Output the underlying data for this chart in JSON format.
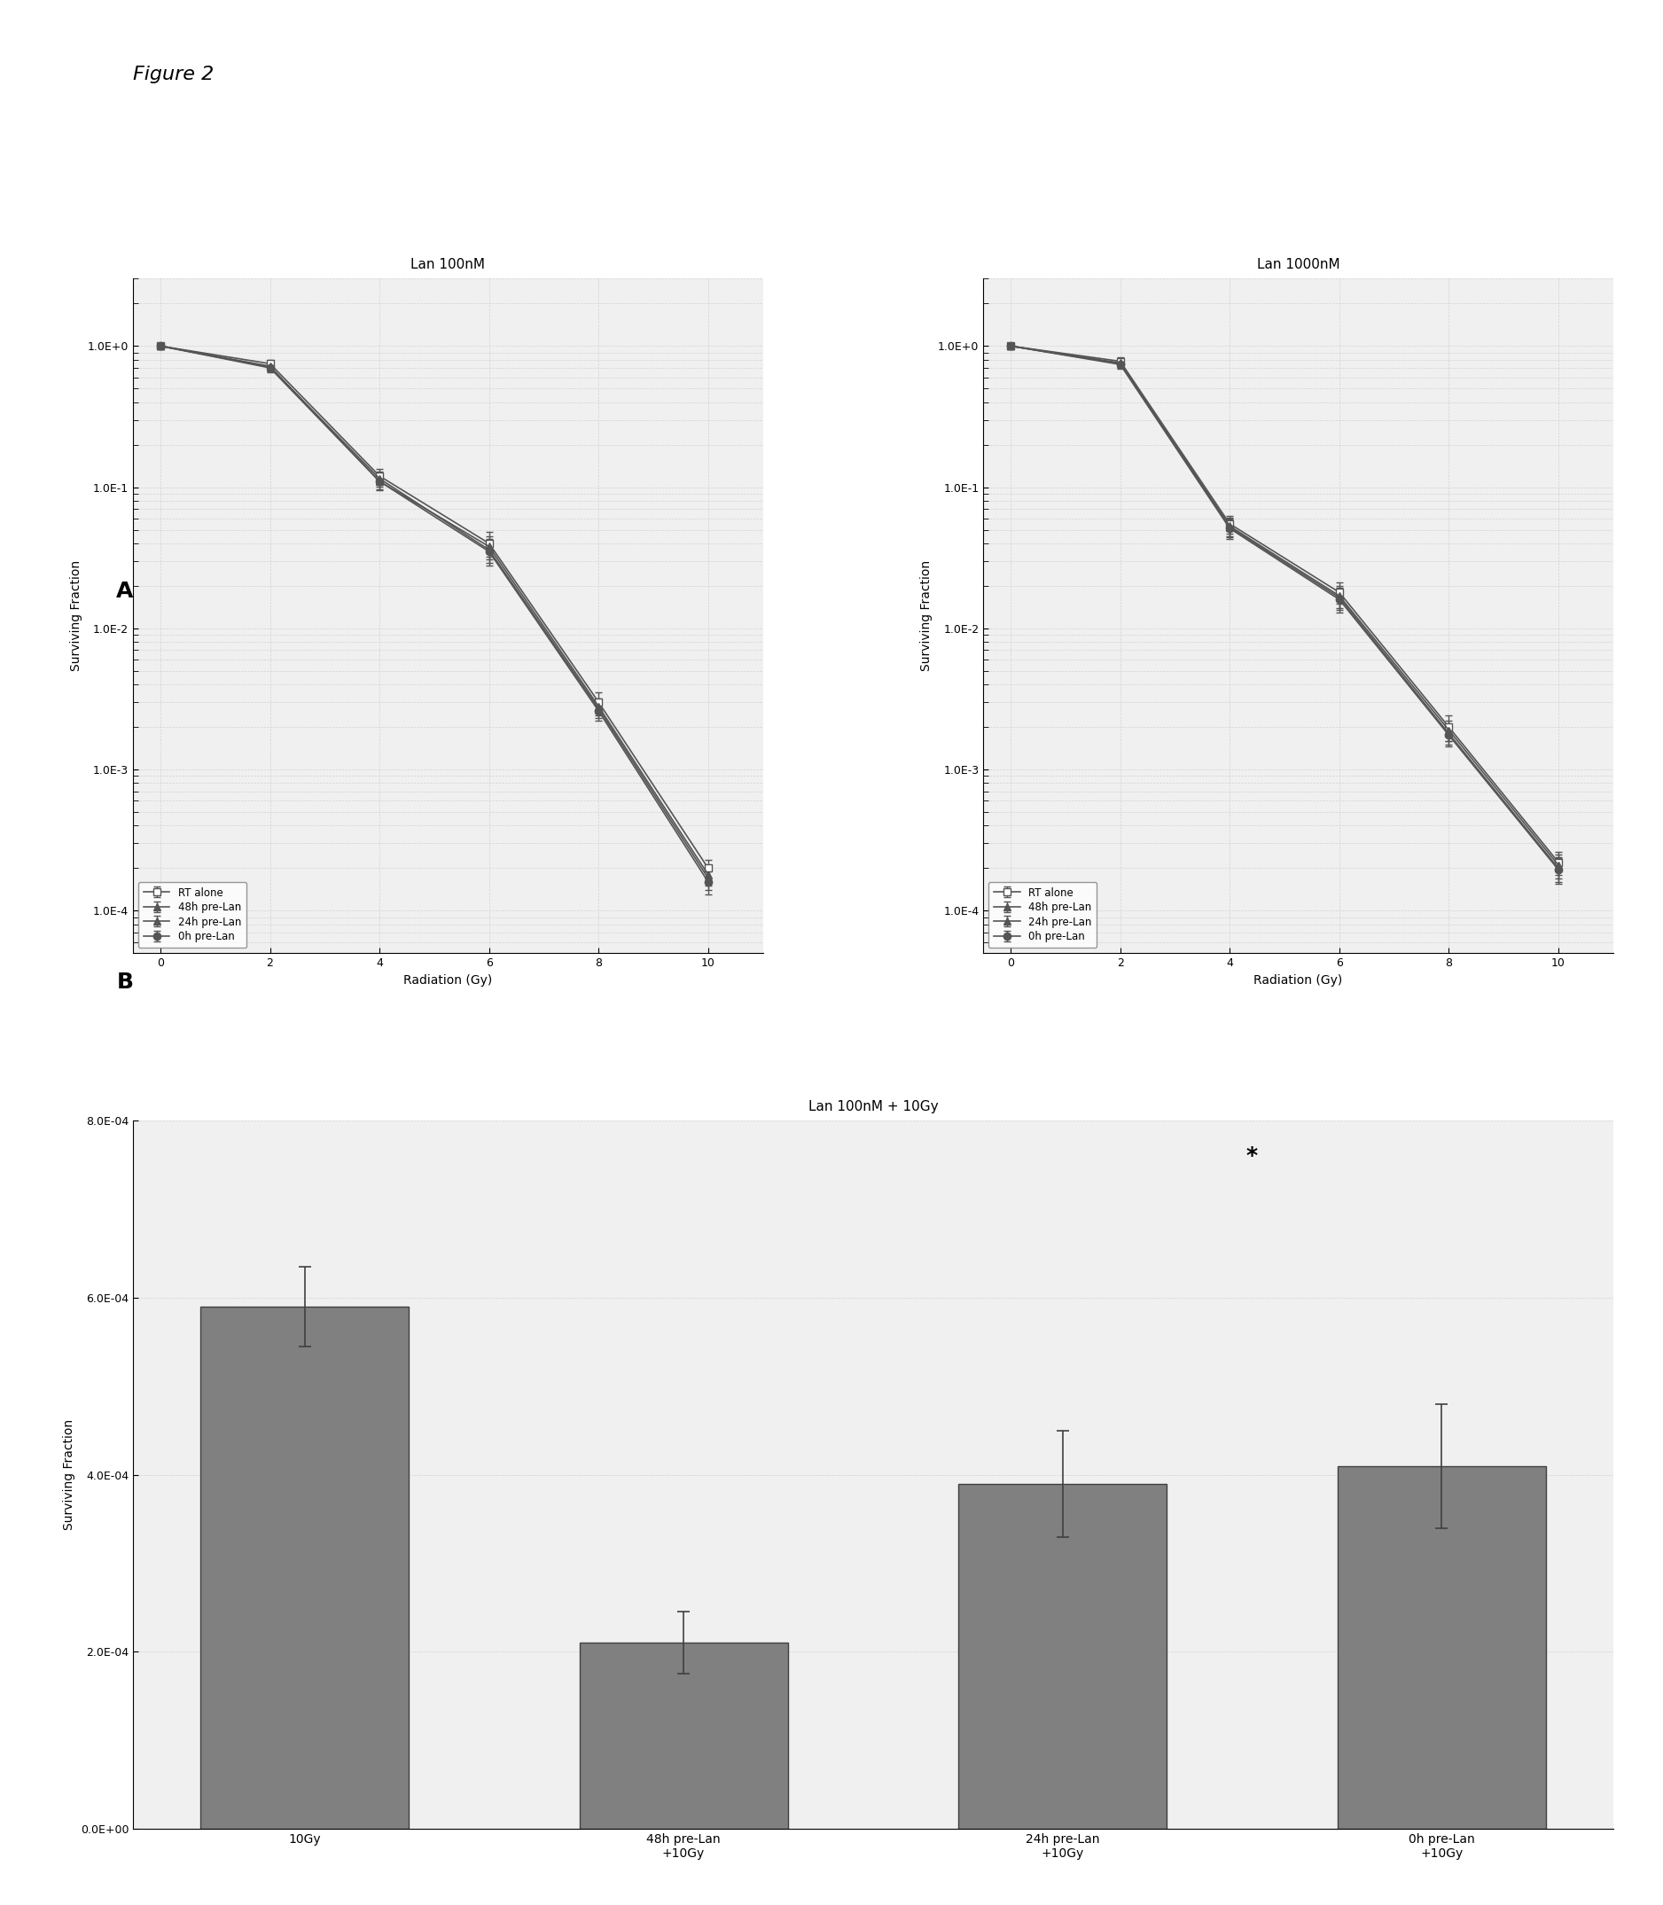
{
  "figure_label": "Figure 2",
  "panel_A_label": "A",
  "panel_B_label": "B",
  "plot_left_title": "Lan 100nM",
  "plot_right_title": "Lan 1000nM",
  "plot_bottom_title": "Lan 100nM + 10Gy",
  "x_radiation": [
    0,
    2,
    4,
    6,
    8,
    10
  ],
  "xlabel": "Radiation (Gy)",
  "ylabel_line": "Surviving Fraction",
  "ylabel_bar": "Surviving Fraction",
  "legend_labels": [
    "RT alone",
    "48h pre-Lan",
    "24h pre-Lan",
    "0h pre-Lan"
  ],
  "line_colors": [
    "#555555",
    "#555555",
    "#555555",
    "#555555"
  ],
  "line_markers": [
    "s",
    "^",
    "^",
    "o"
  ],
  "marker_fills": [
    "white",
    "#555555",
    "#555555",
    "#555555"
  ],
  "line_styles": [
    "-",
    "-",
    "-",
    "-"
  ],
  "y_left_RT": [
    1.0,
    0.75,
    0.12,
    0.04,
    0.003,
    0.0002
  ],
  "y_left_48h": [
    1.0,
    0.72,
    0.11,
    0.038,
    0.0028,
    0.00018
  ],
  "y_left_24h": [
    1.0,
    0.71,
    0.115,
    0.036,
    0.0027,
    0.00017
  ],
  "y_left_0h": [
    1.0,
    0.7,
    0.11,
    0.035,
    0.0026,
    0.00016
  ],
  "y_left_RT_err": [
    0.05,
    0.05,
    0.015,
    0.008,
    0.0005,
    3e-05
  ],
  "y_left_48h_err": [
    0.04,
    0.05,
    0.015,
    0.007,
    0.0004,
    3e-05
  ],
  "y_left_24h_err": [
    0.04,
    0.05,
    0.014,
    0.007,
    0.0004,
    3e-05
  ],
  "y_left_0h_err": [
    0.04,
    0.05,
    0.014,
    0.007,
    0.0004,
    3e-05
  ],
  "y_right_RT": [
    1.0,
    0.78,
    0.055,
    0.018,
    0.002,
    0.00022
  ],
  "y_right_48h": [
    1.0,
    0.76,
    0.053,
    0.017,
    0.0019,
    0.00021
  ],
  "y_right_24h": [
    1.0,
    0.75,
    0.052,
    0.0165,
    0.0018,
    0.0002
  ],
  "y_right_0h": [
    1.0,
    0.74,
    0.051,
    0.016,
    0.00175,
    0.000195
  ],
  "y_right_RT_err": [
    0.05,
    0.05,
    0.008,
    0.003,
    0.0004,
    4e-05
  ],
  "y_right_48h_err": [
    0.04,
    0.05,
    0.008,
    0.003,
    0.0003,
    4e-05
  ],
  "y_right_24h_err": [
    0.04,
    0.05,
    0.008,
    0.003,
    0.0003,
    4e-05
  ],
  "y_right_0h_err": [
    0.04,
    0.05,
    0.008,
    0.003,
    0.0003,
    4e-05
  ],
  "bar_categories": [
    "10Gy",
    "48h pre-Lan\n+10Gy",
    "24h pre-Lan\n+10Gy",
    "0h pre-Lan\n+10Gy"
  ],
  "bar_values": [
    0.00059,
    0.00021,
    0.00039,
    0.00041
  ],
  "bar_errors": [
    4.5e-05,
    3.5e-05,
    6e-05,
    7e-05
  ],
  "bar_color": "#808080",
  "bar_edgecolor": "#404040",
  "ylim_bar": [
    0,
    0.0008
  ],
  "background_color": "#f0f0f0",
  "star_annotation": "*",
  "grid_color": "#cccccc"
}
